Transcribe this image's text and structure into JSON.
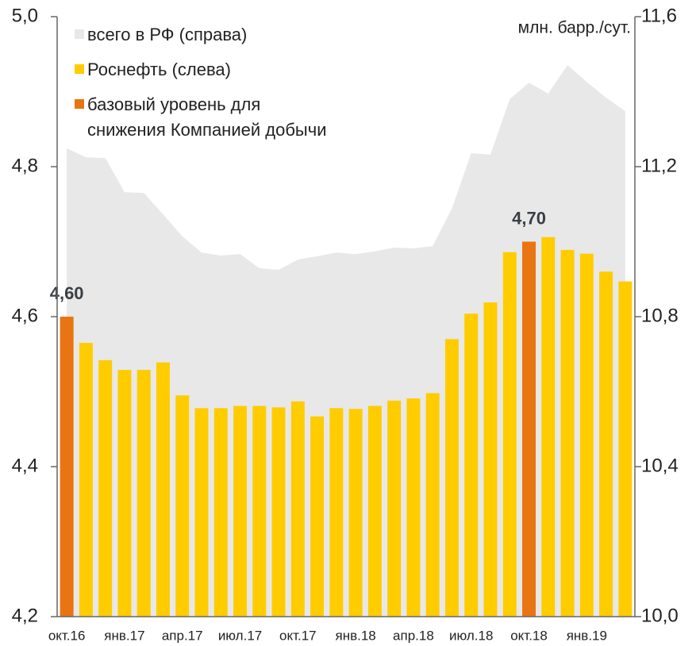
{
  "chart_data": {
    "type": "bar",
    "y2_label": "млн. барр./сут.",
    "categories": [
      "окт.16",
      null,
      null,
      "янв.17",
      null,
      null,
      "апр.17",
      null,
      null,
      "июл.17",
      null,
      null,
      "окт.17",
      null,
      null,
      "янв.18",
      null,
      null,
      "апр.18",
      null,
      null,
      "июл.18",
      null,
      null,
      "окт.18",
      null,
      null,
      "янв.19",
      null,
      null
    ],
    "series": [
      {
        "name": "всего в РФ (справа)",
        "type": "area",
        "axis": "y2",
        "color": "#e8e8e8",
        "values": [
          11.249,
          11.225,
          11.223,
          11.132,
          11.13,
          11.073,
          11.014,
          10.971,
          10.963,
          10.967,
          10.929,
          10.925,
          10.952,
          10.961,
          10.971,
          10.967,
          10.974,
          10.984,
          10.982,
          10.988,
          11.088,
          11.236,
          11.232,
          11.38,
          11.424,
          11.395,
          11.471,
          11.426,
          11.384,
          11.348
        ]
      },
      {
        "name": "Роснефть (слева)",
        "type": "bar",
        "color": "#ffcc00",
        "values": [
          null,
          4.565,
          4.542,
          4.529,
          4.529,
          4.539,
          4.495,
          4.478,
          4.478,
          4.481,
          4.481,
          4.479,
          4.487,
          4.467,
          4.478,
          4.477,
          4.481,
          4.488,
          4.491,
          4.498,
          4.57,
          4.604,
          4.619,
          4.686,
          null,
          4.706,
          4.689,
          4.684,
          4.66,
          4.647
        ]
      },
      {
        "name": "базовый уровень для\nснижения Компанией добычи",
        "type": "bar",
        "color": "#e87511",
        "values": [
          4.6,
          null,
          null,
          null,
          null,
          null,
          null,
          null,
          null,
          null,
          null,
          null,
          null,
          null,
          null,
          null,
          null,
          null,
          null,
          null,
          null,
          null,
          null,
          null,
          4.7,
          null,
          null,
          null,
          null,
          null
        ],
        "value_labels": [
          "4,60",
          null,
          null,
          null,
          null,
          null,
          null,
          null,
          null,
          null,
          null,
          null,
          null,
          null,
          null,
          null,
          null,
          null,
          null,
          null,
          null,
          null,
          null,
          null,
          "4,70",
          null,
          null,
          null,
          null,
          null
        ]
      }
    ],
    "ylim": [
      4.2,
      5.0
    ],
    "yticks": [
      {
        "value": 4.2,
        "label": "4,2"
      },
      {
        "value": 4.4,
        "label": "4,4"
      },
      {
        "value": 4.6,
        "label": "4,6"
      },
      {
        "value": 4.8,
        "label": "4,8"
      },
      {
        "value": 5.0,
        "label": "5,0"
      }
    ],
    "y2lim": [
      10.0,
      11.6
    ],
    "y2ticks": [
      {
        "value": 10.0,
        "label": "10,0"
      },
      {
        "value": 10.4,
        "label": "10,4"
      },
      {
        "value": 10.8,
        "label": "10,8"
      },
      {
        "value": 11.2,
        "label": "11,2"
      },
      {
        "value": 11.6,
        "label": "11,6"
      }
    ]
  }
}
